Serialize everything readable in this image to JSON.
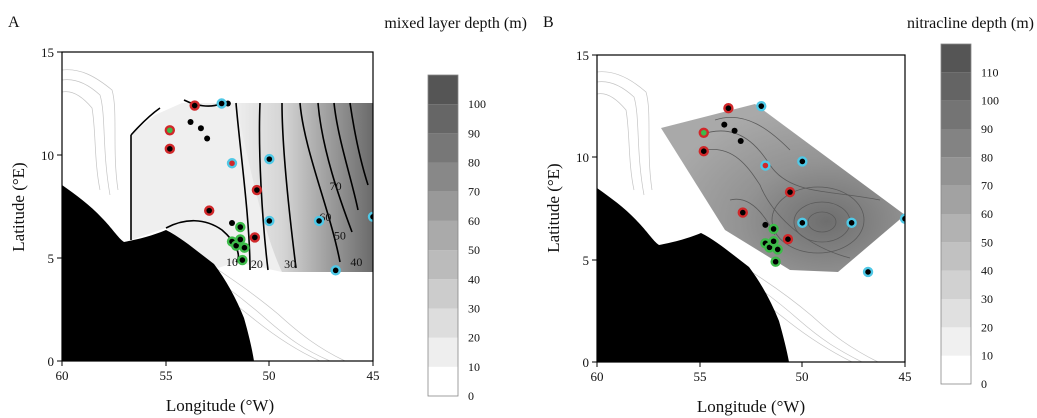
{
  "chart_data": [
    {
      "type": "contour",
      "panel_label": "A",
      "title": "mixed layer depth (m)",
      "xlabel": "Longitude (°W)",
      "ylabel": "Latitude (°E)",
      "xlim": [
        60,
        45
      ],
      "ylim": [
        0,
        15
      ],
      "xticks": [
        "60",
        "55",
        "50",
        "45"
      ],
      "yticks": [
        "0",
        "5",
        "10",
        "15"
      ],
      "colorbar": {
        "min": 0,
        "max": 110,
        "ticks": [
          "0",
          "10",
          "20",
          "30",
          "40",
          "50",
          "60",
          "70",
          "80",
          "90",
          "100"
        ]
      },
      "contour_labels": [
        {
          "text": "10",
          "lon": 51.8,
          "lat": 4.8
        },
        {
          "text": "20",
          "lon": 50.6,
          "lat": 4.7
        },
        {
          "text": "30",
          "lon": 49.0,
          "lat": 4.7
        },
        {
          "text": "40",
          "lon": 45.8,
          "lat": 4.8
        },
        {
          "text": "50",
          "lon": 46.6,
          "lat": 6.1
        },
        {
          "text": "60",
          "lon": 47.3,
          "lat": 7.0
        },
        {
          "text": "70",
          "lon": 46.8,
          "lat": 8.5
        }
      ],
      "stations": {
        "black": [
          [
            53.8,
            11.6
          ],
          [
            53.3,
            11.3
          ],
          [
            53.0,
            10.8
          ],
          [
            52.0,
            12.5
          ],
          [
            51.8,
            6.7
          ]
        ],
        "red": [
          [
            53.6,
            12.4
          ],
          [
            54.8,
            10.3
          ],
          [
            52.9,
            7.3
          ],
          [
            50.6,
            8.3
          ],
          [
            50.7,
            6.0
          ]
        ],
        "red_green": [
          [
            54.8,
            11.2
          ]
        ],
        "red_cyan": [
          [
            51.8,
            9.6
          ]
        ],
        "cyan": [
          [
            52.3,
            12.5
          ],
          [
            50.0,
            9.8
          ],
          [
            50.0,
            6.8
          ],
          [
            47.6,
            6.8
          ],
          [
            45.0,
            7.0
          ],
          [
            46.8,
            4.4
          ]
        ],
        "green": [
          [
            51.4,
            6.5
          ],
          [
            51.8,
            5.8
          ],
          [
            51.6,
            5.6
          ],
          [
            51.4,
            5.9
          ],
          [
            51.2,
            5.5
          ],
          [
            51.3,
            4.9
          ]
        ]
      }
    },
    {
      "type": "contour",
      "panel_label": "B",
      "title": "nitracline depth (m)",
      "xlabel": "Longitude (°W)",
      "ylabel": "Latitude (°E)",
      "xlim": [
        60,
        45
      ],
      "ylim": [
        0,
        15
      ],
      "xticks": [
        "60",
        "55",
        "50",
        "45"
      ],
      "yticks": [
        "0",
        "5",
        "10",
        "15"
      ],
      "colorbar": {
        "min": 0,
        "max": 120,
        "ticks": [
          "0",
          "10",
          "20",
          "30",
          "40",
          "50",
          "60",
          "70",
          "80",
          "90",
          "100",
          "110"
        ]
      },
      "stations": {
        "black": [
          [
            53.8,
            11.6
          ],
          [
            53.3,
            11.3
          ],
          [
            53.0,
            10.8
          ],
          [
            51.8,
            6.7
          ]
        ],
        "red": [
          [
            53.6,
            12.4
          ],
          [
            54.8,
            10.3
          ],
          [
            52.9,
            7.3
          ],
          [
            50.6,
            8.3
          ],
          [
            50.7,
            6.0
          ]
        ],
        "red_green": [
          [
            54.8,
            11.2
          ]
        ],
        "red_cyan": [
          [
            51.8,
            9.6
          ]
        ],
        "cyan": [
          [
            52.0,
            12.5
          ],
          [
            50.0,
            9.8
          ],
          [
            50.0,
            6.8
          ],
          [
            47.6,
            6.8
          ],
          [
            45.0,
            7.0
          ],
          [
            46.8,
            4.4
          ]
        ],
        "green": [
          [
            51.4,
            6.5
          ],
          [
            51.8,
            5.8
          ],
          [
            51.6,
            5.6
          ],
          [
            51.4,
            5.9
          ],
          [
            51.2,
            5.5
          ],
          [
            51.3,
            4.9
          ]
        ]
      }
    }
  ],
  "colors": {
    "land": "#000000",
    "station_black": "#000000",
    "station_red": "#d0282a",
    "station_cyan": "#4fc8e6",
    "station_green": "#3dbb4a"
  }
}
